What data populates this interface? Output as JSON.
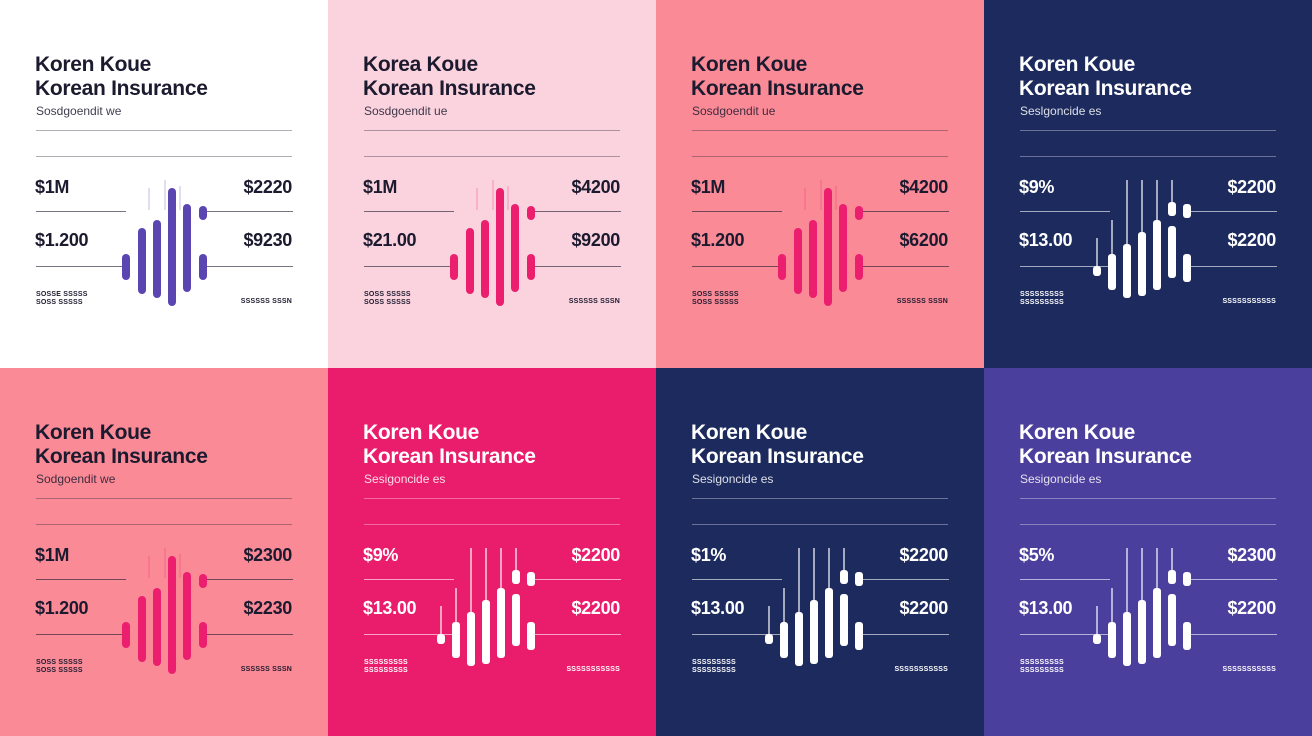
{
  "panels": [
    {
      "bg": "#ffffff",
      "fg": "#1b1a2e",
      "accent": "#5b45b0",
      "style": "bars",
      "brand_line1": "Koren Koue",
      "brand_line2": "Korean Insurance",
      "sub": "Sosdgoendit we",
      "left_value_1": "$1M",
      "left_value_2": "$1.200",
      "right_value_1": "$2220",
      "right_value_2": "$9230",
      "foot_left_1": "SOSSE SSSSS",
      "foot_left_2": "SOSS SSSSS",
      "foot_right": "SSSSSS SSSN"
    },
    {
      "bg": "#fbd3de",
      "fg": "#1b1a2e",
      "accent": "#ec1f6f",
      "style": "bars",
      "brand_line1": "Korea Koue",
      "brand_line2": "Korean Insurance",
      "sub": "Sosdgoendit ue",
      "left_value_1": "$1M",
      "left_value_2": "$21.00",
      "right_value_1": "$4200",
      "right_value_2": "$9200",
      "foot_left_1": "SOSS SSSSS",
      "foot_left_2": "SOSS SSSSS",
      "foot_right": "SSSSSS SSSN"
    },
    {
      "bg": "#fb8a97",
      "fg": "#1b1a2e",
      "accent": "#ec1f6f",
      "style": "bars",
      "brand_line1": "Koren Koue",
      "brand_line2": "Korean Insurance",
      "sub": "Sosdgoendit ue",
      "left_value_1": "$1M",
      "left_value_2": "$1.200",
      "right_value_1": "$4200",
      "right_value_2": "$6200",
      "foot_left_1": "SOSS SSSSS",
      "foot_left_2": "SOSS SSSSS",
      "foot_right": "SSSSSS SSSN"
    },
    {
      "bg": "#1c2a5e",
      "fg": "#ffffff",
      "accent": "#ffffff",
      "style": "candles",
      "brand_line1": "Koren Koue",
      "brand_line2": "Korean Insurance",
      "sub": "Seslgoncide es",
      "left_value_1": "$9%",
      "left_value_2": "$13.00",
      "right_value_1": "$2200",
      "right_value_2": "$2200",
      "foot_left_1": "SSSSSSSSS",
      "foot_left_2": "SSSSSSSSS",
      "foot_right": "SSSSSSSSSSS"
    },
    {
      "bg": "#fb8a97",
      "fg": "#1b1a2e",
      "accent": "#ec1f6f",
      "style": "bars",
      "brand_line1": "Koren Koue",
      "brand_line2": "Korean Insurance",
      "sub": "Sodgoendit we",
      "left_value_1": "$1M",
      "left_value_2": "$1.200",
      "right_value_1": "$2300",
      "right_value_2": "$2230",
      "foot_left_1": "SOSS SSSSS",
      "foot_left_2": "SOSS SSSSS",
      "foot_right": "SSSSSS SSSN"
    },
    {
      "bg": "#ea1d6c",
      "fg": "#ffffff",
      "accent": "#ffffff",
      "style": "candles",
      "brand_line1": "Koren Koue",
      "brand_line2": "Korean Insurance",
      "sub": "Sesigoncide es",
      "left_value_1": "$9%",
      "left_value_2": "$13.00",
      "right_value_1": "$2200",
      "right_value_2": "$2200",
      "foot_left_1": "SSSSSSSSS",
      "foot_left_2": "SSSSSSSSS",
      "foot_right": "SSSSSSSSSSS"
    },
    {
      "bg": "#1c2a5e",
      "fg": "#ffffff",
      "accent": "#ffffff",
      "style": "candles",
      "brand_line1": "Koren Koue",
      "brand_line2": "Korean Insurance",
      "sub": "Sesigoncide es",
      "left_value_1": "$1%",
      "left_value_2": "$13.00",
      "right_value_1": "$2200",
      "right_value_2": "$2200",
      "foot_left_1": "SSSSSSSSS",
      "foot_left_2": "SSSSSSSSS",
      "foot_right": "SSSSSSSSSSS"
    },
    {
      "bg": "#4a3f9c",
      "fg": "#ffffff",
      "accent": "#ffffff",
      "style": "candles",
      "brand_line1": "Koren Koue",
      "brand_line2": "Korean Insurance",
      "sub": "Sesigoncide es",
      "left_value_1": "$5%",
      "left_value_2": "$13.00",
      "right_value_1": "$2300",
      "right_value_2": "$2200",
      "foot_left_1": "SSSSSSSSS",
      "foot_left_2": "SSSSSSSSS",
      "foot_right": "SSSSSSSSSSS"
    }
  ]
}
